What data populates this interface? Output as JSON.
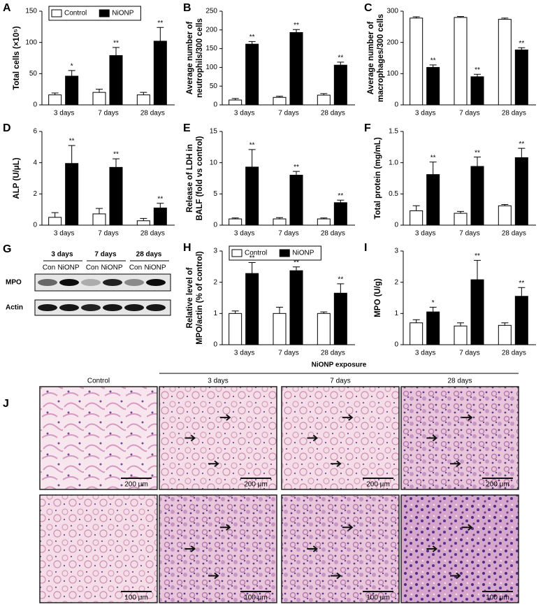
{
  "chart_data": [
    {
      "type": "bar",
      "panel": "A",
      "ylabel": [
        "Total cells (×10⁵)"
      ],
      "categories": [
        "3 days",
        "7 days",
        "28 days"
      ],
      "legend": "upper left",
      "series": [
        {
          "name": "Control",
          "color": "#ffffff",
          "values": [
            16,
            20,
            16
          ],
          "errors": [
            3,
            5,
            4
          ]
        },
        {
          "name": "NiONP",
          "color": "#000000",
          "values": [
            46,
            79,
            102
          ],
          "errors": [
            9,
            13,
            22
          ],
          "significance": [
            "*",
            "**",
            "**"
          ]
        }
      ],
      "ylim": [
        0,
        150
      ],
      "yticks": [
        0,
        50,
        100,
        150
      ]
    },
    {
      "type": "bar",
      "panel": "B",
      "ylabel": [
        "Average number of",
        "neutrophils/300 cells"
      ],
      "categories": [
        "3 days",
        "7 days",
        "28 days"
      ],
      "series": [
        {
          "name": "Control",
          "color": "#ffffff",
          "values": [
            13,
            20,
            26
          ],
          "errors": [
            4,
            3,
            4
          ]
        },
        {
          "name": "NiONP",
          "color": "#000000",
          "values": [
            162,
            193,
            106
          ],
          "errors": [
            7,
            8,
            8
          ],
          "significance": [
            "**",
            "**",
            "**"
          ]
        }
      ],
      "ylim": [
        0,
        250
      ],
      "yticks": [
        0,
        50,
        100,
        150,
        200,
        250
      ]
    },
    {
      "type": "bar",
      "panel": "C",
      "ylabel": [
        "Average number of",
        "macrophages/300 cells"
      ],
      "categories": [
        "3 days",
        "7 days",
        "28 days"
      ],
      "series": [
        {
          "name": "Control",
          "color": "#ffffff",
          "values": [
            278,
            280,
            274
          ],
          "errors": [
            4,
            3,
            4
          ]
        },
        {
          "name": "NiONP",
          "color": "#000000",
          "values": [
            120,
            90,
            176
          ],
          "errors": [
            8,
            8,
            7
          ],
          "significance": [
            "**",
            "**",
            "**"
          ]
        }
      ],
      "ylim": [
        0,
        300
      ],
      "yticks": [
        0,
        100,
        200,
        300
      ]
    },
    {
      "type": "bar",
      "panel": "D",
      "ylabel": [
        "ALP (U/μL)"
      ],
      "categories": [
        "3 days",
        "7 days",
        "28 days"
      ],
      "series": [
        {
          "name": "Control",
          "color": "#ffffff",
          "values": [
            0.5,
            0.72,
            0.28
          ],
          "errors": [
            0.3,
            0.35,
            0.15
          ]
        },
        {
          "name": "NiONP",
          "color": "#000000",
          "values": [
            3.95,
            3.7,
            1.1
          ],
          "errors": [
            1.15,
            0.55,
            0.3
          ],
          "significance": [
            "**",
            "**",
            "**"
          ]
        }
      ],
      "ylim": [
        0,
        6
      ],
      "yticks": [
        0,
        2,
        4,
        6
      ]
    },
    {
      "type": "bar",
      "panel": "E",
      "ylabel": [
        "Release of LDH in",
        "BALF (fold vs control)"
      ],
      "categories": [
        "3 days",
        "7 days",
        "28 days"
      ],
      "series": [
        {
          "name": "Control",
          "color": "#ffffff",
          "values": [
            1.0,
            1.0,
            1.0
          ],
          "errors": [
            0.15,
            0.2,
            0.15
          ]
        },
        {
          "name": "NiONP",
          "color": "#000000",
          "values": [
            9.3,
            8.0,
            3.6
          ],
          "errors": [
            2.8,
            0.6,
            0.4
          ],
          "significance": [
            "**",
            "**",
            "**"
          ]
        }
      ],
      "ylim": [
        0,
        15
      ],
      "yticks": [
        0,
        5,
        10,
        15
      ]
    },
    {
      "type": "bar",
      "panel": "F",
      "ylabel": [
        "Total protein (mg/mL)"
      ],
      "categories": [
        "3 days",
        "7 days",
        "28 days"
      ],
      "series": [
        {
          "name": "Control",
          "color": "#ffffff",
          "values": [
            0.23,
            0.19,
            0.31
          ],
          "errors": [
            0.08,
            0.03,
            0.02
          ]
        },
        {
          "name": "NiONP",
          "color": "#000000",
          "values": [
            0.81,
            0.94,
            1.08
          ],
          "errors": [
            0.2,
            0.15,
            0.15
          ],
          "significance": [
            "**",
            "**",
            "**"
          ]
        }
      ],
      "ylim": [
        0,
        1.5
      ],
      "yticks": [
        0,
        0.5,
        {
          "value": 1,
          "label": "1.0"
        },
        1.5
      ]
    },
    {
      "type": "bar",
      "panel": "H",
      "ylabel": [
        "Relative level of",
        "MPO/actin (% of control)"
      ],
      "categories": [
        "3 days",
        "7 days",
        "28 days"
      ],
      "legend": "upper left",
      "series": [
        {
          "name": "Control",
          "color": "#ffffff",
          "values": [
            1.0,
            1.0,
            1.0
          ],
          "errors": [
            0.08,
            0.2,
            0.05
          ]
        },
        {
          "name": "NiONP",
          "color": "#000000",
          "values": [
            2.28,
            2.37,
            1.65
          ],
          "errors": [
            0.35,
            0.12,
            0.3
          ],
          "significance": [
            "**",
            "**",
            "**"
          ]
        }
      ],
      "ylim": [
        0,
        3
      ],
      "yticks": [
        0,
        1,
        2,
        3
      ]
    },
    {
      "type": "bar",
      "panel": "I",
      "ylabel": [
        "MPO (U/g)"
      ],
      "categories": [
        "3 days",
        "7 days",
        "28 days"
      ],
      "series": [
        {
          "name": "Control",
          "color": "#ffffff",
          "values": [
            0.7,
            0.6,
            0.62
          ],
          "errors": [
            0.1,
            0.1,
            0.08
          ]
        },
        {
          "name": "NiONP",
          "color": "#000000",
          "values": [
            1.05,
            2.08,
            1.55
          ],
          "errors": [
            0.15,
            0.62,
            0.28
          ],
          "significance": [
            "*",
            "**",
            "**"
          ]
        }
      ],
      "ylim": [
        0,
        3
      ],
      "yticks": [
        0,
        1,
        2,
        3
      ]
    }
  ],
  "blot": {
    "panel": "G",
    "groups": [
      "3 days",
      "7 days",
      "28 days"
    ],
    "lanes": [
      "Con",
      "NiONP"
    ],
    "rows": [
      "MPO",
      "Actin"
    ]
  },
  "histology": {
    "panel": "J",
    "header": "NiONP exposure",
    "columns": [
      "Control",
      "3 days",
      "7 days",
      "28 days"
    ],
    "scales": [
      "200 μm",
      "100 μm"
    ]
  }
}
